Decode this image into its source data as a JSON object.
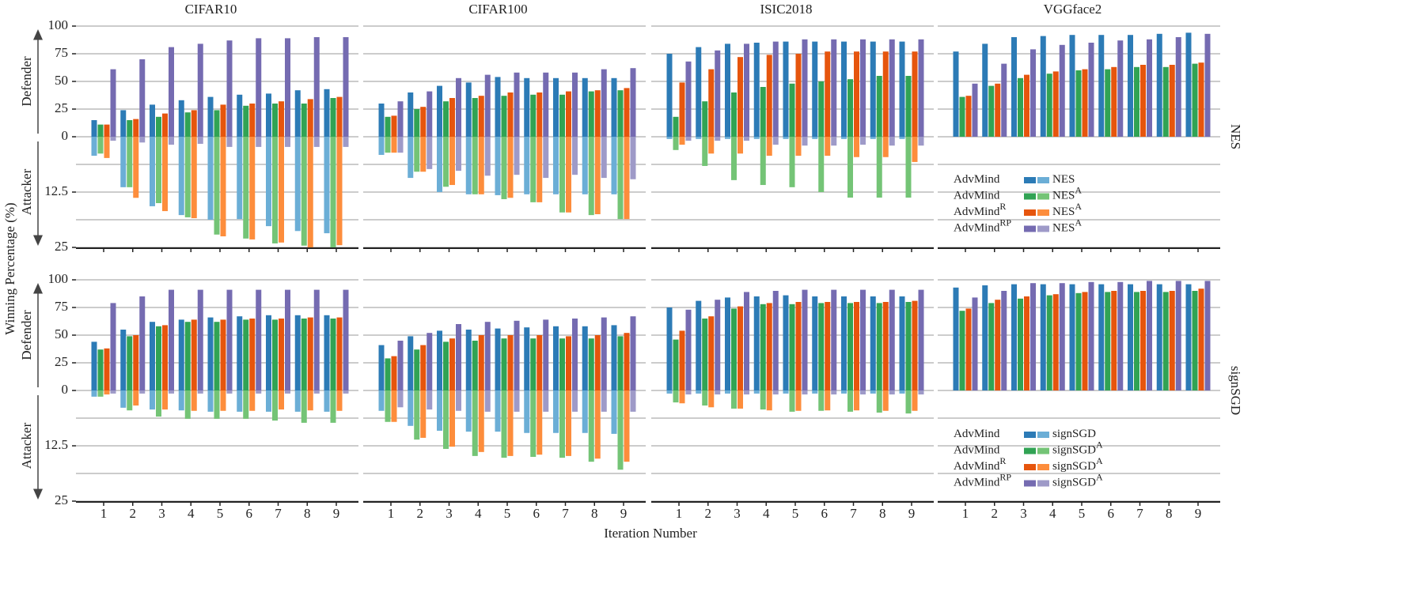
{
  "figure": {
    "ylabel": "Winning Percentage (%)",
    "xlabel": "Iteration Number",
    "defender_label": "Defender",
    "attacker_label": "Attacker",
    "row_labels": [
      "NES",
      "signSGD"
    ],
    "legends": [
      {
        "rows": [
          {
            "method": "AdvMind",
            "attack": "NES"
          },
          {
            "method": "AdvMind",
            "attack": "NES",
            "attack_sup": "A"
          },
          {
            "method": "AdvMind",
            "method_sup": "R",
            "attack": "NES",
            "attack_sup": "A"
          },
          {
            "method": "AdvMind",
            "method_sup": "RP",
            "attack": "NES",
            "attack_sup": "A"
          }
        ]
      },
      {
        "rows": [
          {
            "method": "AdvMind",
            "attack": "signSGD"
          },
          {
            "method": "AdvMind",
            "attack": "signSGD",
            "attack_sup": "A"
          },
          {
            "method": "AdvMind",
            "method_sup": "R",
            "attack": "signSGD",
            "attack_sup": "A"
          },
          {
            "method": "AdvMind",
            "method_sup": "RP",
            "attack": "signSGD",
            "attack_sup": "A"
          }
        ]
      }
    ]
  },
  "chart_data": [
    {
      "type": "bar",
      "title": "CIFAR10",
      "tick_labels": true,
      "categories": [
        null,
        null,
        null,
        null,
        null,
        null,
        null,
        null,
        null
      ],
      "ylim": [
        0,
        100
      ],
      "yticks": [
        0,
        25,
        50,
        75,
        100
      ],
      "y2lim": [
        0,
        25
      ],
      "y2ticks": [
        12.5,
        25
      ],
      "y2minor": [
        6.25,
        18.75
      ],
      "series": [
        {
          "color": "#2c7bb6",
          "values": [
            15,
            24,
            29,
            33,
            36,
            38,
            39,
            42,
            43
          ]
        },
        {
          "color": "#31a354",
          "values": [
            11,
            15,
            18,
            22,
            24,
            28,
            30,
            30,
            35
          ]
        },
        {
          "color": "#e6550d",
          "values": [
            11,
            16,
            21,
            24,
            29,
            30,
            32,
            34,
            36
          ]
        },
        {
          "color": "#756bb1",
          "values": [
            61,
            70,
            81,
            84,
            87,
            89,
            89,
            90,
            90
          ]
        },
        {
          "color": "#6baed6",
          "axis": "y2",
          "values": [
            4.3,
            11.4,
            15.7,
            17.7,
            18.75,
            18.6,
            20.2,
            21.3,
            21.8
          ]
        },
        {
          "color": "#74c476",
          "axis": "y2",
          "values": [
            3.8,
            11.4,
            15,
            18.2,
            22.1,
            23,
            24.1,
            24.6,
            25
          ]
        },
        {
          "color": "#fd8d3c",
          "axis": "y2",
          "values": [
            4.8,
            13.8,
            16.8,
            18.4,
            22.5,
            23.2,
            23.9,
            25,
            24.5
          ]
        },
        {
          "color": "#9e9ac8",
          "axis": "y2",
          "values": [
            0.9,
            1.3,
            1.8,
            1.6,
            2.3,
            2.3,
            2.3,
            2.3,
            2.3
          ]
        }
      ]
    },
    {
      "type": "bar",
      "title": "CIFAR100",
      "tick_labels": false,
      "categories": [
        null,
        null,
        null,
        null,
        null,
        null,
        null,
        null,
        null
      ],
      "ylim": [
        0,
        100
      ],
      "yticks": [
        0,
        25,
        50,
        75,
        100
      ],
      "y2lim": [
        0,
        25
      ],
      "y2ticks": [
        12.5,
        25
      ],
      "y2minor": [
        6.25,
        18.75
      ],
      "series": [
        {
          "color": "#2c7bb6",
          "values": [
            30,
            40,
            46,
            49,
            54,
            53,
            53,
            53,
            53
          ]
        },
        {
          "color": "#31a354",
          "values": [
            18,
            25,
            32,
            35,
            37,
            38,
            38,
            41,
            42
          ]
        },
        {
          "color": "#e6550d",
          "values": [
            19,
            27,
            35,
            37,
            40,
            40,
            41,
            42,
            44
          ]
        },
        {
          "color": "#756bb1",
          "values": [
            32,
            41,
            53,
            56,
            58,
            58,
            58,
            61,
            62
          ]
        },
        {
          "color": "#6baed6",
          "axis": "y2",
          "values": [
            4.1,
            9.3,
            12.5,
            13,
            13.2,
            13,
            13,
            13,
            13
          ]
        },
        {
          "color": "#74c476",
          "axis": "y2",
          "values": [
            3.6,
            7.9,
            11.3,
            13,
            14.1,
            14.8,
            17.1,
            17.7,
            18.6
          ]
        },
        {
          "color": "#fd8d3c",
          "axis": "y2",
          "values": [
            3.6,
            7.9,
            10.9,
            13,
            13.8,
            14.8,
            17.1,
            17.5,
            18.6
          ]
        },
        {
          "color": "#9e9ac8",
          "axis": "y2",
          "values": [
            3.6,
            7.3,
            7.7,
            8.8,
            8.6,
            9.3,
            8.6,
            9.3,
            9.6
          ]
        }
      ]
    },
    {
      "type": "bar",
      "title": "ISIC2018",
      "tick_labels": false,
      "categories": [
        null,
        null,
        null,
        null,
        null,
        null,
        null,
        null,
        null
      ],
      "ylim": [
        0,
        100
      ],
      "yticks": [
        0,
        25,
        50,
        75,
        100
      ],
      "y2lim": [
        0,
        25
      ],
      "y2ticks": [
        12.5,
        25
      ],
      "y2minor": [
        6.25,
        18.75
      ],
      "series": [
        {
          "color": "#2c7bb6",
          "values": [
            75,
            81,
            84,
            85,
            86,
            86,
            86,
            86,
            86
          ]
        },
        {
          "color": "#31a354",
          "values": [
            18,
            32,
            40,
            45,
            48,
            50,
            52,
            55,
            55
          ]
        },
        {
          "color": "#e6550d",
          "values": [
            49,
            61,
            72,
            74,
            75,
            77,
            77,
            77,
            77
          ]
        },
        {
          "color": "#756bb1",
          "values": [
            68,
            78,
            84,
            86,
            88,
            88,
            88,
            88,
            88
          ]
        },
        {
          "color": "#6baed6",
          "axis": "y2",
          "values": [
            0.5,
            0.5,
            0.5,
            0.5,
            0.5,
            0.5,
            0.5,
            0.5,
            0.5
          ]
        },
        {
          "color": "#74c476",
          "axis": "y2",
          "values": [
            3,
            6.6,
            9.8,
            10.9,
            11.4,
            12.5,
            13.75,
            13.75,
            13.75
          ]
        },
        {
          "color": "#fd8d3c",
          "axis": "y2",
          "values": [
            1.8,
            3.8,
            3.8,
            4.3,
            4.3,
            4.3,
            4.6,
            4.6,
            5.7
          ]
        },
        {
          "color": "#9e9ac8",
          "axis": "y2",
          "values": [
            0.9,
            0.9,
            0.9,
            1.8,
            2,
            2,
            1.8,
            2,
            2
          ]
        }
      ]
    },
    {
      "type": "bar",
      "title": "VGGface2",
      "tick_labels": false,
      "categories": [
        null,
        null,
        null,
        null,
        null,
        null,
        null,
        null,
        null
      ],
      "ylim": [
        0,
        100
      ],
      "yticks": [
        0,
        25,
        50,
        75,
        100
      ],
      "y2lim": [
        0,
        25
      ],
      "y2ticks": [
        12.5,
        25
      ],
      "y2minor": [
        6.25,
        18.75
      ],
      "series": [
        {
          "color": "#2c7bb6",
          "values": [
            77,
            84,
            90,
            91,
            92,
            92,
            92,
            93,
            94
          ]
        },
        {
          "color": "#31a354",
          "values": [
            36,
            46,
            53,
            57,
            60,
            61,
            63,
            63,
            66
          ]
        },
        {
          "color": "#e6550d",
          "values": [
            37,
            48,
            56,
            59,
            61,
            63,
            65,
            65,
            67
          ]
        },
        {
          "color": "#756bb1",
          "values": [
            48,
            66,
            79,
            83,
            85,
            87,
            88,
            90,
            93
          ]
        }
      ]
    },
    {
      "type": "bar",
      "tick_labels": true,
      "categories": [
        1,
        2,
        3,
        4,
        5,
        6,
        7,
        8,
        9
      ],
      "ylim": [
        0,
        100
      ],
      "yticks": [
        0,
        25,
        50,
        75,
        100
      ],
      "y2lim": [
        0,
        25
      ],
      "y2ticks": [
        12.5,
        25
      ],
      "y2minor": [
        6.25,
        18.75
      ],
      "series": [
        {
          "color": "#2c7bb6",
          "values": [
            44,
            55,
            62,
            64,
            66,
            67,
            68,
            68,
            68
          ]
        },
        {
          "color": "#31a354",
          "values": [
            37,
            49,
            58,
            62,
            62,
            64,
            64,
            65,
            65
          ]
        },
        {
          "color": "#e6550d",
          "values": [
            38,
            50,
            59,
            64,
            64,
            65,
            65,
            66,
            66
          ]
        },
        {
          "color": "#756bb1",
          "values": [
            79,
            85,
            91,
            91,
            91,
            91,
            91,
            91,
            91
          ]
        },
        {
          "color": "#6baed6",
          "axis": "y2",
          "values": [
            1.4,
            3.9,
            4.3,
            4.5,
            4.8,
            4.8,
            4.8,
            4.8,
            4.8
          ]
        },
        {
          "color": "#74c476",
          "axis": "y2",
          "values": [
            1.4,
            4.5,
            5.9,
            6.4,
            6.4,
            6.4,
            6.8,
            7.3,
            7.3
          ]
        },
        {
          "color": "#fd8d3c",
          "axis": "y2",
          "values": [
            0.9,
            3.4,
            4.3,
            4.6,
            4.6,
            4.6,
            4.3,
            4.5,
            4.6
          ]
        },
        {
          "color": "#9e9ac8",
          "axis": "y2",
          "values": [
            0.7,
            0.7,
            0.7,
            0.7,
            0.7,
            0.7,
            0.7,
            0.7,
            0.7
          ]
        }
      ]
    },
    {
      "type": "bar",
      "tick_labels": false,
      "categories": [
        1,
        2,
        3,
        4,
        5,
        6,
        7,
        8,
        9
      ],
      "ylim": [
        0,
        100
      ],
      "yticks": [
        0,
        25,
        50,
        75,
        100
      ],
      "y2lim": [
        0,
        25
      ],
      "y2ticks": [
        12.5,
        25
      ],
      "y2minor": [
        6.25,
        18.75
      ],
      "series": [
        {
          "color": "#2c7bb6",
          "values": [
            41,
            49,
            54,
            55,
            56,
            57,
            58,
            58,
            59
          ]
        },
        {
          "color": "#31a354",
          "values": [
            29,
            37,
            44,
            45,
            47,
            47,
            47,
            47,
            49
          ]
        },
        {
          "color": "#e6550d",
          "values": [
            31,
            41,
            47,
            50,
            50,
            50,
            49,
            50,
            52
          ]
        },
        {
          "color": "#756bb1",
          "values": [
            45,
            52,
            60,
            62,
            63,
            64,
            65,
            66,
            67
          ]
        },
        {
          "color": "#6baed6",
          "axis": "y2",
          "values": [
            4.6,
            8,
            9.1,
            9.3,
            9.3,
            9.6,
            9.6,
            9.6,
            9.8
          ]
        },
        {
          "color": "#74c476",
          "axis": "y2",
          "values": [
            7.1,
            11.1,
            13.2,
            14.8,
            15.2,
            15,
            15.2,
            16.1,
            17.9
          ]
        },
        {
          "color": "#fd8d3c",
          "axis": "y2",
          "values": [
            7.1,
            10.7,
            12.7,
            13.9,
            14.8,
            14.5,
            14.8,
            15.4,
            16.1
          ]
        },
        {
          "color": "#9e9ac8",
          "axis": "y2",
          "values": [
            3.8,
            4.3,
            4.6,
            4.8,
            4.8,
            4.8,
            4.8,
            4.8,
            4.8
          ]
        }
      ]
    },
    {
      "type": "bar",
      "tick_labels": false,
      "categories": [
        1,
        2,
        3,
        4,
        5,
        6,
        7,
        8,
        9
      ],
      "ylim": [
        0,
        100
      ],
      "yticks": [
        0,
        25,
        50,
        75,
        100
      ],
      "y2lim": [
        0,
        25
      ],
      "y2ticks": [
        12.5,
        25
      ],
      "y2minor": [
        6.25,
        18.75
      ],
      "series": [
        {
          "color": "#2c7bb6",
          "values": [
            75,
            81,
            84,
            85,
            86,
            85,
            85,
            85,
            85
          ]
        },
        {
          "color": "#31a354",
          "values": [
            46,
            65,
            74,
            78,
            78,
            79,
            79,
            79,
            80
          ]
        },
        {
          "color": "#e6550d",
          "values": [
            54,
            67,
            76,
            79,
            80,
            80,
            80,
            80,
            81
          ]
        },
        {
          "color": "#756bb1",
          "values": [
            73,
            82,
            89,
            90,
            91,
            91,
            91,
            91,
            91
          ]
        },
        {
          "color": "#6baed6",
          "axis": "y2",
          "values": [
            0.7,
            0.7,
            0.7,
            0.7,
            0.7,
            0.7,
            0.7,
            0.7,
            0.7
          ]
        },
        {
          "color": "#74c476",
          "axis": "y2",
          "values": [
            2.7,
            3.4,
            4.1,
            4.3,
            4.8,
            4.6,
            4.8,
            5,
            5.2
          ]
        },
        {
          "color": "#fd8d3c",
          "axis": "y2",
          "values": [
            2.9,
            3.8,
            4.1,
            4.5,
            4.6,
            4.5,
            4.5,
            4.6,
            4.6
          ]
        },
        {
          "color": "#9e9ac8",
          "axis": "y2",
          "values": [
            0.9,
            0.9,
            0.9,
            0.9,
            0.9,
            0.9,
            0.9,
            0.9,
            0.9
          ]
        }
      ]
    },
    {
      "type": "bar",
      "tick_labels": false,
      "categories": [
        1,
        2,
        3,
        4,
        5,
        6,
        7,
        8,
        9
      ],
      "ylim": [
        0,
        100
      ],
      "yticks": [
        0,
        25,
        50,
        75,
        100
      ],
      "y2lim": [
        0,
        25
      ],
      "y2ticks": [
        12.5,
        25
      ],
      "y2minor": [
        6.25,
        18.75
      ],
      "series": [
        {
          "color": "#2c7bb6",
          "values": [
            93,
            95,
            96,
            96,
            96,
            96,
            96,
            96,
            96
          ]
        },
        {
          "color": "#31a354",
          "values": [
            72,
            79,
            83,
            86,
            88,
            89,
            89,
            89,
            90
          ]
        },
        {
          "color": "#e6550d",
          "values": [
            74,
            82,
            85,
            87,
            89,
            90,
            90,
            90,
            92
          ]
        },
        {
          "color": "#756bb1",
          "values": [
            84,
            90,
            97,
            97,
            98,
            98,
            99,
            99,
            99
          ]
        }
      ]
    }
  ]
}
